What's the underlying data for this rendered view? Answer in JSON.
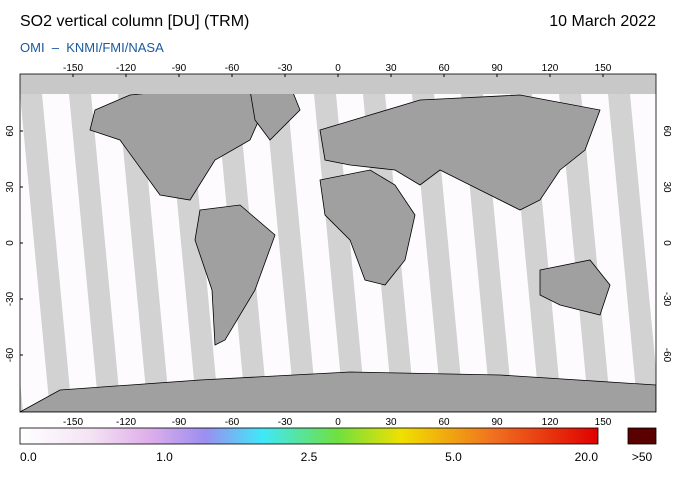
{
  "header": {
    "title": "SO2 vertical column [DU] (TRM)",
    "source": "OMI  –  KNMI/FMI/NASA",
    "date": "10 March 2022"
  },
  "map": {
    "lon_ticks": [
      -150,
      -120,
      -90,
      -60,
      -30,
      0,
      30,
      60,
      90,
      120,
      150
    ],
    "lat_ticks": [
      60,
      30,
      0,
      -30,
      -60
    ]
  },
  "colorbar": {
    "labels": [
      "0.0",
      "1.0",
      "2.5",
      "5.0",
      "20.0"
    ],
    "overflow": ">50"
  }
}
